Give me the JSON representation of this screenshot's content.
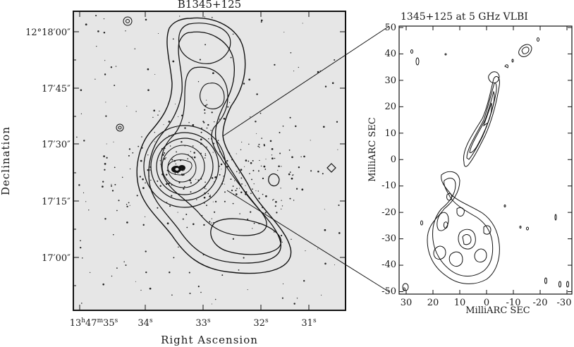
{
  "left_panel": {
    "title": "B1345+125",
    "xlabel": "Right Ascension",
    "ylabel": "Declination",
    "y_ticks": [
      "12°18′00″",
      "17′45″",
      "17′30″",
      "17′15″",
      "17′00″"
    ],
    "x_ticks": [
      {
        "h": "13",
        "m": "47",
        "s": "35"
      },
      {
        "s": "34"
      },
      {
        "s": "33"
      },
      {
        "s": "32"
      },
      {
        "s": "31"
      }
    ]
  },
  "right_panel": {
    "title": "1345+125 at 5 GHz VLBI",
    "xlabel": "MilliARC SEC",
    "ylabel": "MilliARC SEC",
    "y_ticks": [
      "50",
      "40",
      "30",
      "20",
      "10",
      "0",
      "-10",
      "-20",
      "-30",
      "-40",
      "-50"
    ],
    "x_ticks": [
      "30",
      "20",
      "10",
      "0",
      "-10",
      "-20",
      "-30"
    ]
  },
  "colors": {
    "left_background": "#e6e6e6",
    "right_background": "#ffffff",
    "contour": "#111111"
  }
}
